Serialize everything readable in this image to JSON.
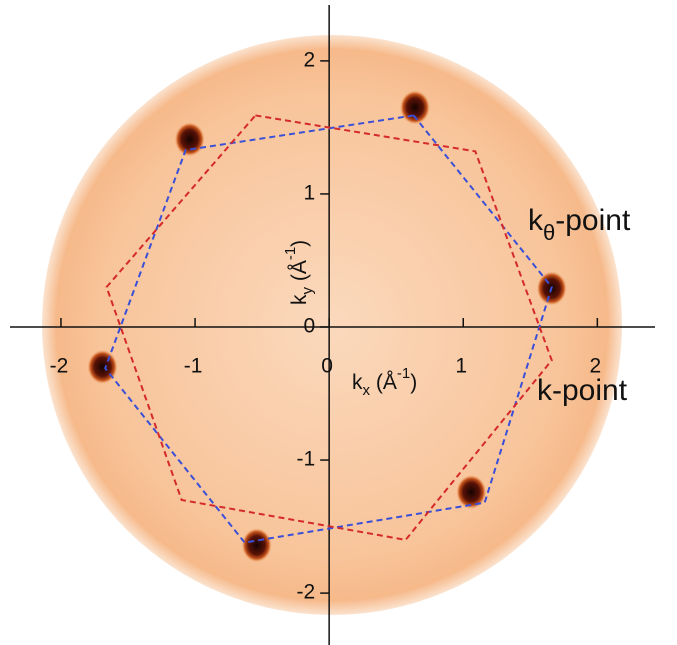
{
  "chart_data": {
    "type": "scatter",
    "x_label": [
      "k",
      "x",
      " (Å",
      "-1",
      ")"
    ],
    "y_label": [
      "k",
      "y",
      " (Å",
      "-1",
      ")"
    ],
    "annotations": [
      [
        "k",
        "θ",
        "-point"
      ],
      [
        "k-point"
      ]
    ],
    "xlim": [
      -2.38,
      2.43
    ],
    "ylim": [
      -2.39,
      2.42
    ],
    "xticks": [
      -2,
      -1,
      0,
      1,
      2
    ],
    "yticks": [
      -2,
      -1,
      0,
      1,
      2
    ],
    "spots": {
      "color": "#2a0a05",
      "x": [
        0.64,
        -1.04,
        1.66,
        -1.69,
        1.06,
        -0.54
      ],
      "y": [
        1.65,
        1.41,
        0.29,
        -0.3,
        -1.24,
        -1.64
      ]
    },
    "series": [
      {
        "color": "#3a4fd8",
        "x": [
          0.63,
          -1.07,
          -1.67,
          -0.63,
          1.16,
          1.66,
          0.63
        ],
        "y": [
          1.59,
          1.33,
          -0.31,
          -1.62,
          -1.32,
          0.3,
          1.59
        ]
      },
      {
        "color": "#d42a2a",
        "x": [
          -0.55,
          1.09,
          1.66,
          0.57,
          -1.1,
          -1.66,
          -0.55
        ],
        "y": [
          1.59,
          1.32,
          -0.25,
          -1.6,
          -1.3,
          0.3,
          1.59
        ]
      }
    ]
  }
}
